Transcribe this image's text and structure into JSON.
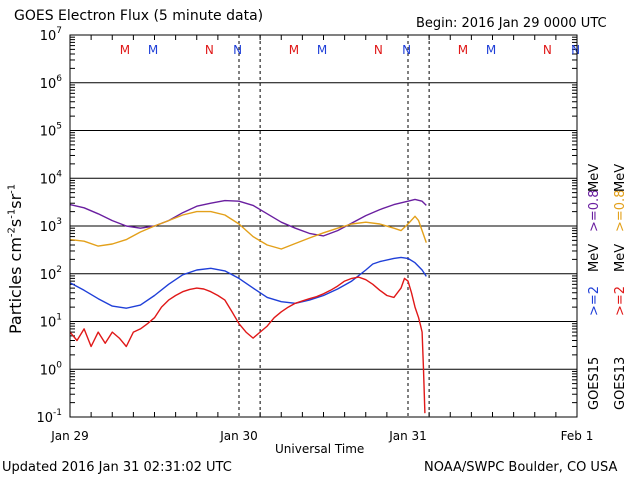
{
  "header": {
    "title": "GOES Electron Flux (5 minute data)",
    "begin": "Begin: 2016 Jan 29 0000 UTC"
  },
  "footer": {
    "updated": "Updated 2016 Jan 31 02:31:02 UTC",
    "credit": "NOAA/SWPC Boulder, CO USA"
  },
  "colors": {
    "goes15_2mev": "#1f3fd8",
    "goes15_08mev": "#6a1fa0",
    "goes13_2mev": "#e01818",
    "goes13_08mev": "#e3a01a"
  },
  "legend": {
    "goes15": "GOES15",
    "goes13": "GOES13",
    "goes15_2mev": ">=2",
    "goes15_08mev": ">=0.8",
    "goes13_2mev": ">=2",
    "goes13_08mev": ">=0.8",
    "unit": "MeV"
  },
  "chart_data": {
    "type": "line",
    "title": "GOES Electron Flux (5 minute data)",
    "xlabel": "Universal Time",
    "ylabel": "Particles cm-2 s-1 sr-1",
    "yscale": "log",
    "ylim": [
      0.1,
      10000000
    ],
    "xlim": [
      0,
      72
    ],
    "x_unit": "hours since 2016 Jan 29 0000 UTC",
    "x_ticks": [
      {
        "x": 0,
        "label": "Jan 29"
      },
      {
        "x": 24,
        "label": "Jan 30"
      },
      {
        "x": 48,
        "label": "Jan 31"
      },
      {
        "x": 72,
        "label": "Feb 1"
      }
    ],
    "y_ticks": [
      {
        "value": 0.1,
        "base": "10",
        "exp": "-1"
      },
      {
        "value": 1,
        "base": "10",
        "exp": "0"
      },
      {
        "value": 10,
        "base": "10",
        "exp": "1"
      },
      {
        "value": 100,
        "base": "10",
        "exp": "2"
      },
      {
        "value": 1000,
        "base": "10",
        "exp": "3"
      },
      {
        "value": 10000,
        "base": "10",
        "exp": "4"
      },
      {
        "value": 100000,
        "base": "10",
        "exp": "5"
      },
      {
        "value": 1000000,
        "base": "10",
        "exp": "6"
      },
      {
        "value": 10000000,
        "base": "10",
        "exp": "7"
      }
    ],
    "threshold": 1000,
    "local_time_markers": [
      {
        "x": 7.8,
        "label": "M",
        "sat": "GOES13"
      },
      {
        "x": 11.8,
        "label": "M",
        "sat": "GOES15"
      },
      {
        "x": 19.8,
        "label": "N",
        "sat": "GOES13"
      },
      {
        "x": 23.8,
        "label": "N",
        "sat": "GOES15"
      },
      {
        "x": 31.8,
        "label": "M",
        "sat": "GOES13"
      },
      {
        "x": 35.8,
        "label": "M",
        "sat": "GOES15"
      },
      {
        "x": 43.8,
        "label": "N",
        "sat": "GOES13"
      },
      {
        "x": 47.8,
        "label": "N",
        "sat": "GOES15"
      },
      {
        "x": 55.8,
        "label": "M",
        "sat": "GOES13"
      },
      {
        "x": 59.8,
        "label": "M",
        "sat": "GOES15"
      },
      {
        "x": 67.8,
        "label": "N",
        "sat": "GOES13"
      },
      {
        "x": 71.8,
        "label": "N",
        "sat": "GOES15"
      }
    ],
    "dashed_verticals": [
      27,
      51
    ],
    "series": [
      {
        "name": "GOES15 >=0.8 MeV",
        "color": "#6a1fa0",
        "x": [
          0,
          2,
          4,
          6,
          8,
          10,
          12,
          14,
          16,
          18,
          20,
          22,
          24,
          26,
          28,
          30,
          32,
          34,
          36,
          38,
          40,
          42,
          44,
          46,
          48,
          49,
          50,
          50.6
        ],
        "y": [
          2800,
          2400,
          1800,
          1300,
          1000,
          900,
          1000,
          1300,
          1900,
          2600,
          3000,
          3400,
          3300,
          2700,
          1800,
          1200,
          900,
          700,
          620,
          800,
          1150,
          1650,
          2200,
          2800,
          3300,
          3600,
          3300,
          2700
        ]
      },
      {
        "name": "GOES13 >=0.8 MeV",
        "color": "#e3a01a",
        "x": [
          0,
          2,
          4,
          6,
          8,
          10,
          12,
          14,
          16,
          18,
          20,
          22,
          24,
          26,
          28,
          30,
          32,
          34,
          36,
          38,
          40,
          42,
          44,
          46,
          47,
          48,
          49,
          49.5,
          50,
          50.6
        ],
        "y": [
          520,
          480,
          380,
          420,
          520,
          750,
          1000,
          1300,
          1700,
          2000,
          2000,
          1700,
          1100,
          600,
          400,
          330,
          430,
          560,
          720,
          900,
          1100,
          1200,
          1100,
          900,
          800,
          1100,
          1600,
          1300,
          800,
          450
        ]
      },
      {
        "name": "GOES15 >=2 MeV",
        "color": "#1f3fd8",
        "x": [
          0,
          2,
          4,
          6,
          8,
          10,
          12,
          14,
          16,
          18,
          20,
          22,
          24,
          26,
          28,
          30,
          32,
          34,
          36,
          38,
          40,
          42,
          43,
          44,
          46,
          47,
          48,
          49,
          50,
          50.6
        ],
        "y": [
          65,
          45,
          30,
          21,
          19,
          22,
          35,
          60,
          95,
          120,
          130,
          115,
          80,
          50,
          32,
          26,
          24,
          28,
          35,
          48,
          70,
          120,
          160,
          180,
          210,
          220,
          210,
          170,
          120,
          88
        ]
      },
      {
        "name": "GOES13 >=2 MeV",
        "color": "#e01818",
        "x": [
          0,
          1,
          2,
          3,
          4,
          5,
          6,
          7,
          8,
          9,
          10,
          11,
          12,
          13,
          14,
          15,
          16,
          17,
          18,
          19,
          20,
          21,
          22,
          23,
          24,
          25,
          26,
          27,
          28,
          29,
          30,
          31,
          32,
          33,
          34,
          35,
          36,
          37,
          38,
          39,
          40,
          41,
          42,
          43,
          44,
          45,
          46,
          47,
          47.5,
          48,
          48.5,
          49,
          49.5,
          49.8,
          50,
          50.2,
          50.4
        ],
        "y": [
          6,
          4,
          7,
          3,
          6,
          3.5,
          6,
          4.5,
          3,
          6,
          7,
          9,
          12,
          20,
          28,
          35,
          42,
          47,
          50,
          48,
          42,
          35,
          28,
          16,
          9,
          6,
          4.5,
          6,
          8,
          12,
          16,
          20,
          24,
          27,
          30,
          33,
          38,
          45,
          55,
          70,
          80,
          85,
          75,
          60,
          45,
          35,
          32,
          50,
          80,
          70,
          40,
          20,
          12,
          8,
          6,
          1,
          0.12
        ]
      }
    ]
  }
}
